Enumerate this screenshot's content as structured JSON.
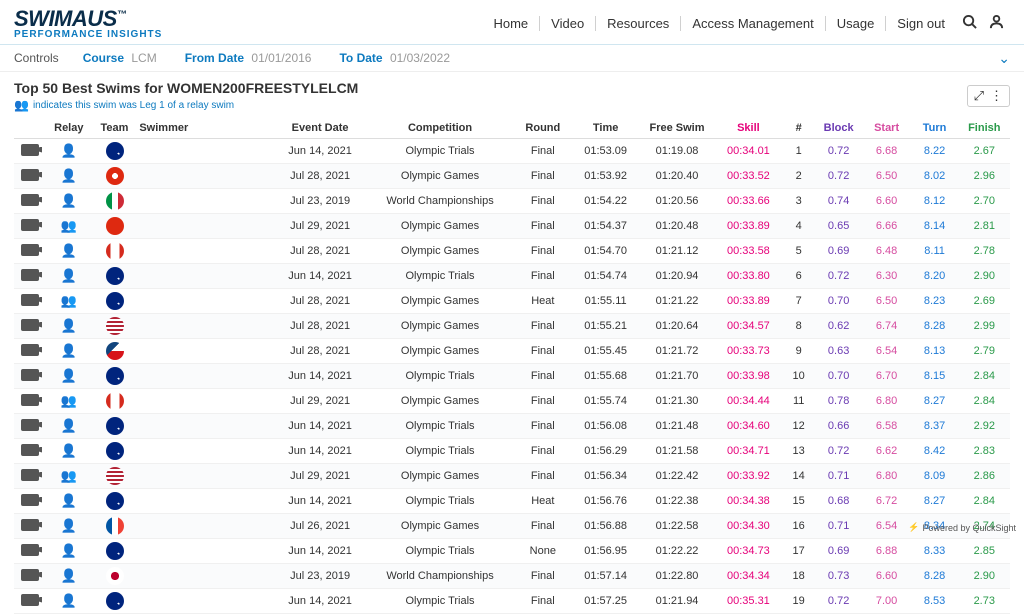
{
  "logo": {
    "main": "SWIMAUS",
    "sub": "PERFORMANCE INSIGHTS",
    "reg": "™"
  },
  "nav": {
    "items": [
      "Home",
      "Video",
      "Resources",
      "Access Management",
      "Usage",
      "Sign out"
    ]
  },
  "controls": {
    "label": "Controls",
    "course": {
      "label": "Course",
      "value": "LCM"
    },
    "from": {
      "label": "From Date",
      "value": "01/01/2016"
    },
    "to": {
      "label": "To Date",
      "value": "01/03/2022"
    }
  },
  "page": {
    "title": "Top 50 Best Swims for WOMEN200FREESTYLELCM",
    "subtitle": "indicates this swim was Leg 1 of a relay swim"
  },
  "columns": [
    "",
    "Relay",
    "Team",
    "Swimmer",
    "Event Date",
    "Competition",
    "Round",
    "Time",
    "Free Swim",
    "Skill",
    "#",
    "Block",
    "Start",
    "Turn",
    "Finish"
  ],
  "flags": {
    "aus": "radial-gradient(circle at 70% 65%, #fff 1px, transparent 1px), linear-gradient(#00247d,#00247d)",
    "hkg": "radial-gradient(circle at 50% 50%, #fff 3px, transparent 3px), linear-gradient(#de2910,#de2910)",
    "ita": "linear-gradient(90deg,#009246 33%,#fff 33% 66%,#ce2b37 66%)",
    "chn": "linear-gradient(#de2910,#de2910)",
    "can": "linear-gradient(90deg,#d52b1e 25%,#fff 25% 75%,#d52b1e 75%)",
    "usa": "repeating-linear-gradient(#b22234 0 2px,#fff 2px 4px)",
    "cze": "linear-gradient(135deg,#11457e 40%,transparent 40%), linear-gradient(#fff 50%,#d7141a 50%)",
    "fra": "linear-gradient(90deg,#0055a4 33%,#fff 33% 66%,#ef4135 66%)",
    "jpn": "radial-gradient(circle at 50% 50%, #bc002d 4px, #fff 4px)"
  },
  "rows": [
    {
      "relay": "single",
      "flag": "aus",
      "swimmer": "",
      "date": "Jun 14, 2021",
      "comp": "Olympic Trials",
      "round": "Final",
      "time": "01:53.09",
      "free": "01:19.08",
      "skill": "00:34.01",
      "rank": "1",
      "block": "0.72",
      "start": "6.68",
      "turn": "8.22",
      "finish": "2.67"
    },
    {
      "relay": "single",
      "flag": "hkg",
      "swimmer": "",
      "date": "Jul 28, 2021",
      "comp": "Olympic Games",
      "round": "Final",
      "time": "01:53.92",
      "free": "01:20.40",
      "skill": "00:33.52",
      "rank": "2",
      "block": "0.72",
      "start": "6.50",
      "turn": "8.02",
      "finish": "2.96"
    },
    {
      "relay": "single",
      "flag": "ita",
      "swimmer": "",
      "date": "Jul 23, 2019",
      "comp": "World Championships",
      "round": "Final",
      "time": "01:54.22",
      "free": "01:20.56",
      "skill": "00:33.66",
      "rank": "3",
      "block": "0.74",
      "start": "6.60",
      "turn": "8.12",
      "finish": "2.70"
    },
    {
      "relay": "double",
      "flag": "chn",
      "swimmer": "",
      "date": "Jul 29, 2021",
      "comp": "Olympic Games",
      "round": "Final",
      "time": "01:54.37",
      "free": "01:20.48",
      "skill": "00:33.89",
      "rank": "4",
      "block": "0.65",
      "start": "6.66",
      "turn": "8.14",
      "finish": "2.81"
    },
    {
      "relay": "single",
      "flag": "can",
      "swimmer": "",
      "date": "Jul 28, 2021",
      "comp": "Olympic Games",
      "round": "Final",
      "time": "01:54.70",
      "free": "01:21.12",
      "skill": "00:33.58",
      "rank": "5",
      "block": "0.69",
      "start": "6.48",
      "turn": "8.11",
      "finish": "2.78"
    },
    {
      "relay": "single",
      "flag": "aus",
      "swimmer": "",
      "date": "Jun 14, 2021",
      "comp": "Olympic Trials",
      "round": "Final",
      "time": "01:54.74",
      "free": "01:20.94",
      "skill": "00:33.80",
      "rank": "6",
      "block": "0.72",
      "start": "6.30",
      "turn": "8.20",
      "finish": "2.90"
    },
    {
      "relay": "double",
      "flag": "aus",
      "swimmer": "",
      "date": "Jul 28, 2021",
      "comp": "Olympic Games",
      "round": "Heat",
      "time": "01:55.11",
      "free": "01:21.22",
      "skill": "00:33.89",
      "rank": "7",
      "block": "0.70",
      "start": "6.50",
      "turn": "8.23",
      "finish": "2.69"
    },
    {
      "relay": "single",
      "flag": "usa",
      "swimmer": "",
      "date": "Jul 28, 2021",
      "comp": "Olympic Games",
      "round": "Final",
      "time": "01:55.21",
      "free": "01:20.64",
      "skill": "00:34.57",
      "rank": "8",
      "block": "0.62",
      "start": "6.74",
      "turn": "8.28",
      "finish": "2.99"
    },
    {
      "relay": "single",
      "flag": "cze",
      "swimmer": "",
      "date": "Jul 28, 2021",
      "comp": "Olympic Games",
      "round": "Final",
      "time": "01:55.45",
      "free": "01:21.72",
      "skill": "00:33.73",
      "rank": "9",
      "block": "0.63",
      "start": "6.54",
      "turn": "8.13",
      "finish": "2.79"
    },
    {
      "relay": "single",
      "flag": "aus",
      "swimmer": "",
      "date": "Jun 14, 2021",
      "comp": "Olympic Trials",
      "round": "Final",
      "time": "01:55.68",
      "free": "01:21.70",
      "skill": "00:33.98",
      "rank": "10",
      "block": "0.70",
      "start": "6.70",
      "turn": "8.15",
      "finish": "2.84"
    },
    {
      "relay": "double",
      "flag": "can",
      "swimmer": "",
      "date": "Jul 29, 2021",
      "comp": "Olympic Games",
      "round": "Final",
      "time": "01:55.74",
      "free": "01:21.30",
      "skill": "00:34.44",
      "rank": "11",
      "block": "0.78",
      "start": "6.80",
      "turn": "8.27",
      "finish": "2.84"
    },
    {
      "relay": "single",
      "flag": "aus",
      "swimmer": "",
      "date": "Jun 14, 2021",
      "comp": "Olympic Trials",
      "round": "Final",
      "time": "01:56.08",
      "free": "01:21.48",
      "skill": "00:34.60",
      "rank": "12",
      "block": "0.66",
      "start": "6.58",
      "turn": "8.37",
      "finish": "2.92"
    },
    {
      "relay": "single",
      "flag": "aus",
      "swimmer": "",
      "date": "Jun 14, 2021",
      "comp": "Olympic Trials",
      "round": "Final",
      "time": "01:56.29",
      "free": "01:21.58",
      "skill": "00:34.71",
      "rank": "13",
      "block": "0.72",
      "start": "6.62",
      "turn": "8.42",
      "finish": "2.83"
    },
    {
      "relay": "double",
      "flag": "usa",
      "swimmer": "",
      "date": "Jul 29, 2021",
      "comp": "Olympic Games",
      "round": "Final",
      "time": "01:56.34",
      "free": "01:22.42",
      "skill": "00:33.92",
      "rank": "14",
      "block": "0.71",
      "start": "6.80",
      "turn": "8.09",
      "finish": "2.86"
    },
    {
      "relay": "single",
      "flag": "aus",
      "swimmer": "",
      "date": "Jun 14, 2021",
      "comp": "Olympic Trials",
      "round": "Heat",
      "time": "01:56.76",
      "free": "01:22.38",
      "skill": "00:34.38",
      "rank": "15",
      "block": "0.68",
      "start": "6.72",
      "turn": "8.27",
      "finish": "2.84"
    },
    {
      "relay": "single",
      "flag": "fra",
      "swimmer": "",
      "date": "Jul 26, 2021",
      "comp": "Olympic Games",
      "round": "Final",
      "time": "01:56.88",
      "free": "01:22.58",
      "skill": "00:34.30",
      "rank": "16",
      "block": "0.71",
      "start": "6.54",
      "turn": "8.34",
      "finish": "2.74"
    },
    {
      "relay": "single",
      "flag": "aus",
      "swimmer": "",
      "date": "Jun 14, 2021",
      "comp": "Olympic Trials",
      "round": "None",
      "time": "01:56.95",
      "free": "01:22.22",
      "skill": "00:34.73",
      "rank": "17",
      "block": "0.69",
      "start": "6.88",
      "turn": "8.33",
      "finish": "2.85"
    },
    {
      "relay": "single",
      "flag": "jpn",
      "swimmer": "",
      "date": "Jul 23, 2019",
      "comp": "World Championships",
      "round": "Final",
      "time": "01:57.14",
      "free": "01:22.80",
      "skill": "00:34.34",
      "rank": "18",
      "block": "0.73",
      "start": "6.60",
      "turn": "8.28",
      "finish": "2.90"
    },
    {
      "relay": "single",
      "flag": "aus",
      "swimmer": "",
      "date": "Jun 14, 2021",
      "comp": "Olympic Trials",
      "round": "Final",
      "time": "01:57.25",
      "free": "01:21.94",
      "skill": "00:35.31",
      "rank": "19",
      "block": "0.72",
      "start": "7.00",
      "turn": "8.53",
      "finish": "2.73"
    }
  ],
  "footer": "Powered by QuickSight"
}
